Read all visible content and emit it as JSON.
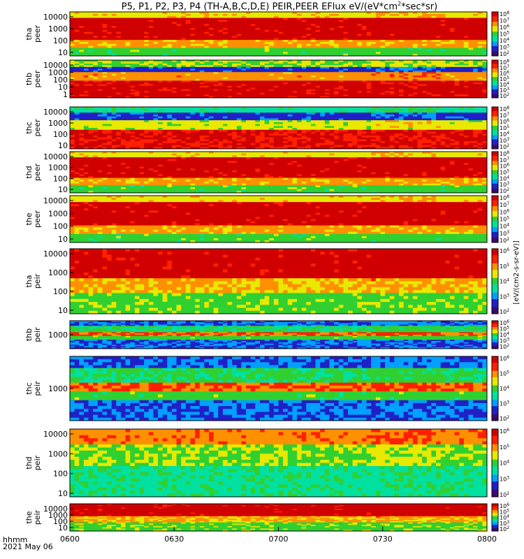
{
  "title_prefix": "P5, P1, P2, P3, P4 (TH-A,B,C,D,E) PEIR,PEER EFlux eV/(eV*cm",
  "title_sup": "2",
  "title_suffix": "*sec*sr)",
  "footer": {
    "format": "hhmm",
    "date": "2021 May 06"
  },
  "chart_data": {
    "type": "heatmap",
    "x_ticks": [
      "0600",
      "0630",
      "0700",
      "0730",
      "0800"
    ],
    "xlim": [
      "0600",
      "0800"
    ],
    "colorbar_label": "[eV/(cm2-s-sr-eV)]",
    "colorbar_label_partial": "[eV/(cm2-s",
    "colormap": [
      "#3b0a6b",
      "#2020c8",
      "#00a0ff",
      "#00e0a0",
      "#30d030",
      "#e8e800",
      "#ff9000",
      "#ff2000",
      "#d00000"
    ],
    "panels": [
      {
        "probe": "tha",
        "species": "peer",
        "yticks": [
          "10",
          "100",
          "1000",
          "10000"
        ],
        "cb_ticks": [
          "10^2",
          "10^3",
          "10^4",
          "10^5",
          "10^6",
          "10^7",
          "10^8"
        ],
        "pattern": "electron"
      },
      {
        "probe": "thb",
        "species": "peer",
        "yticks": [
          "1",
          "10",
          "100",
          "1000",
          "10000"
        ],
        "cb_ticks": [
          "10^2",
          "10^3",
          "10^4",
          "10^5",
          "10^6",
          "10^7",
          "10^8"
        ],
        "pattern": "electron_b"
      },
      {
        "probe": "thc",
        "species": "peer",
        "yticks": [
          "10",
          "100",
          "1000",
          "10000"
        ],
        "cb_ticks": [
          "10^2",
          "10^3",
          "10^4",
          "10^5",
          "10^6",
          "10^7",
          "10^8"
        ],
        "pattern": "electron_c"
      },
      {
        "probe": "thd",
        "species": "peer",
        "yticks": [
          "10",
          "100",
          "1000",
          "10000"
        ],
        "cb_ticks": [
          "10^2",
          "10^3",
          "10^4",
          "10^5",
          "10^6",
          "10^7",
          "10^8"
        ],
        "pattern": "electron"
      },
      {
        "probe": "the",
        "species": "peer",
        "yticks": [
          "10",
          "100",
          "1000",
          "10000"
        ],
        "cb_ticks": [
          "10^2",
          "10^3",
          "10^4",
          "10^5",
          "10^6",
          "10^7",
          "10^8"
        ],
        "pattern": "electron"
      },
      {
        "probe": "tha",
        "species": "peir",
        "yticks": [
          "10",
          "100",
          "1000",
          "10000"
        ],
        "cb_ticks": [
          "10^2",
          "10^3",
          "10^4",
          "10^5",
          "10^6"
        ],
        "pattern": "ion"
      },
      {
        "probe": "thb",
        "species": "peir",
        "yticks": [
          "1000"
        ],
        "cb_ticks": [
          "10^2",
          "10^3",
          "10^4",
          "10^5",
          "10^6"
        ],
        "pattern": "ion_band"
      },
      {
        "probe": "thc",
        "species": "peir",
        "yticks": [
          "1000"
        ],
        "cb_ticks": [
          "10^2",
          "10^3",
          "10^4",
          "10^5",
          "10^6"
        ],
        "pattern": "ion_band"
      },
      {
        "probe": "thd",
        "species": "peir",
        "yticks": [
          "10",
          "100",
          "1000",
          "10000"
        ],
        "cb_ticks": [
          "10^2",
          "10^3",
          "10^4",
          "10^5",
          "10^6"
        ],
        "pattern": "ion_d"
      },
      {
        "probe": "the",
        "species": "peir",
        "yticks": [
          "10",
          "100",
          "1000",
          "10000"
        ],
        "cb_ticks": [
          "10^2",
          "10^3",
          "10^4",
          "10^5",
          "10^6"
        ],
        "pattern": "ion"
      }
    ]
  }
}
